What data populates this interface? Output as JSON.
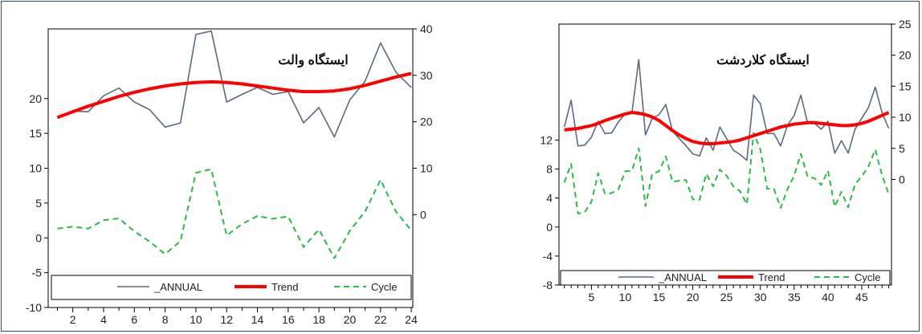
{
  "chart_data": [
    {
      "type": "line",
      "title": "ایستگاه والت",
      "x": [
        1,
        2,
        3,
        4,
        5,
        6,
        7,
        8,
        9,
        10,
        11,
        12,
        13,
        14,
        15,
        16,
        17,
        18,
        19,
        20,
        21,
        22,
        23,
        24
      ],
      "x_ticks": [
        2,
        4,
        6,
        8,
        10,
        12,
        14,
        16,
        18,
        20,
        22,
        24
      ],
      "left_axis": {
        "min": -10,
        "max": 30,
        "ticks": [
          -10,
          -5,
          0,
          5,
          10,
          15,
          20
        ]
      },
      "right_axis": {
        "min": -20,
        "max": 40,
        "ticks": [
          0,
          10,
          20,
          30,
          40
        ]
      },
      "series": [
        {
          "name": "_ANNUAL",
          "axis": "left",
          "color": "#5a6a80",
          "style": "solid",
          "values": [
            17.2,
            18.2,
            18.1,
            20.4,
            21.5,
            19.5,
            18.4,
            15.9,
            16.5,
            29.2,
            29.7,
            19.5,
            20.6,
            21.6,
            20.6,
            21.0,
            16.5,
            18.7,
            14.5,
            19.8,
            22.5,
            28.0,
            23.8,
            21.6
          ]
        },
        {
          "name": "Trend",
          "axis": "left",
          "color": "#ff0000",
          "style": "thick",
          "values": [
            17.3,
            18.1,
            18.9,
            19.6,
            20.3,
            20.9,
            21.4,
            21.8,
            22.1,
            22.3,
            22.4,
            22.3,
            22.1,
            21.8,
            21.5,
            21.2,
            21.0,
            21.0,
            21.1,
            21.4,
            21.9,
            22.5,
            23.1,
            23.6
          ]
        },
        {
          "name": "Cycle",
          "axis": "right",
          "color": "#2eb84a",
          "style": "dashed",
          "values": [
            -3.0,
            -2.6,
            -3.0,
            -1.2,
            -0.8,
            -3.6,
            -5.8,
            -8.5,
            -5.7,
            9.0,
            9.8,
            -4.5,
            -2.0,
            -0.3,
            -0.9,
            -0.4,
            -7.0,
            -3.2,
            -9.4,
            -3.5,
            0.7,
            7.5,
            0.7,
            -3.4
          ]
        }
      ]
    },
    {
      "type": "line",
      "title": "ایستگاه کلاردشت",
      "x": [
        1,
        2,
        3,
        4,
        5,
        6,
        7,
        8,
        9,
        10,
        11,
        12,
        13,
        14,
        15,
        16,
        17,
        18,
        19,
        20,
        21,
        22,
        23,
        24,
        25,
        26,
        27,
        28,
        29,
        30,
        31,
        32,
        33,
        34,
        35,
        36,
        37,
        38,
        39,
        40,
        41,
        42,
        43,
        44,
        45,
        46,
        47,
        48,
        49
      ],
      "x_ticks": [
        5,
        10,
        15,
        20,
        25,
        30,
        35,
        40,
        45
      ],
      "left_axis": {
        "min": -8,
        "max": 28,
        "ticks": [
          -8,
          -4,
          0,
          4,
          8,
          12
        ]
      },
      "right_axis": {
        "min": -17,
        "max": 25,
        "ticks": [
          0,
          5,
          10,
          15,
          20,
          25
        ]
      },
      "series": [
        {
          "name": "_ANNUAL",
          "axis": "left",
          "color": "#5a6a80",
          "style": "solid",
          "values": [
            13.8,
            17.5,
            11.2,
            11.3,
            12.4,
            14.6,
            12.9,
            13.0,
            14.5,
            15.6,
            15.8,
            23.1,
            12.7,
            15.0,
            15.5,
            16.9,
            13.2,
            12.2,
            11.2,
            10.1,
            9.8,
            12.3,
            10.6,
            13.8,
            12.2,
            10.6,
            10.0,
            9.2,
            18.2,
            17.0,
            12.9,
            12.9,
            11.2,
            14.0,
            15.4,
            18.2,
            14.3,
            14.3,
            13.5,
            14.6,
            10.2,
            11.9,
            10.2,
            13.5,
            15.0,
            16.5,
            19.3,
            15.8,
            13.6
          ]
        },
        {
          "name": "Trend",
          "axis": "left",
          "color": "#ff0000",
          "style": "thick",
          "values": [
            13.4,
            13.5,
            13.6,
            13.8,
            14.0,
            14.3,
            14.7,
            15.0,
            15.3,
            15.6,
            15.8,
            15.7,
            15.5,
            15.2,
            14.7,
            14.0,
            13.3,
            12.7,
            12.2,
            11.8,
            11.6,
            11.5,
            11.5,
            11.6,
            11.7,
            11.8,
            12.0,
            12.3,
            12.6,
            12.9,
            13.2,
            13.5,
            13.8,
            14.0,
            14.2,
            14.3,
            14.4,
            14.4,
            14.3,
            14.2,
            14.1,
            14.0,
            14.0,
            14.1,
            14.3,
            14.6,
            15.0,
            15.4,
            15.8
          ]
        },
        {
          "name": "Cycle",
          "axis": "right",
          "color": "#2eb84a",
          "style": "dashed",
          "values": [
            -0.5,
            2.5,
            -5.5,
            -5.3,
            -3.6,
            1.0,
            -2.3,
            -2.2,
            -1.6,
            1.3,
            1.4,
            5.0,
            -4.3,
            0.9,
            1.3,
            3.7,
            -0.4,
            -0.2,
            -0.1,
            -3.2,
            -3.3,
            0.9,
            -1.1,
            1.6,
            0.6,
            -1.1,
            -1.9,
            -4.0,
            7.5,
            4.8,
            -1.5,
            -1.5,
            -4.6,
            -1.6,
            0.6,
            4.1,
            0.4,
            0.2,
            -0.9,
            1.4,
            -4.4,
            -2.0,
            -4.5,
            -0.8,
            0.5,
            2.1,
            4.8,
            0.7,
            -2.4
          ]
        }
      ]
    }
  ],
  "legend": [
    {
      "label": "_ANNUAL",
      "color": "#5a6a80",
      "style": "solid"
    },
    {
      "label": "Trend",
      "color": "#ff0000",
      "style": "thick"
    },
    {
      "label": "Cycle",
      "color": "#2eb84a",
      "style": "dashed"
    }
  ]
}
